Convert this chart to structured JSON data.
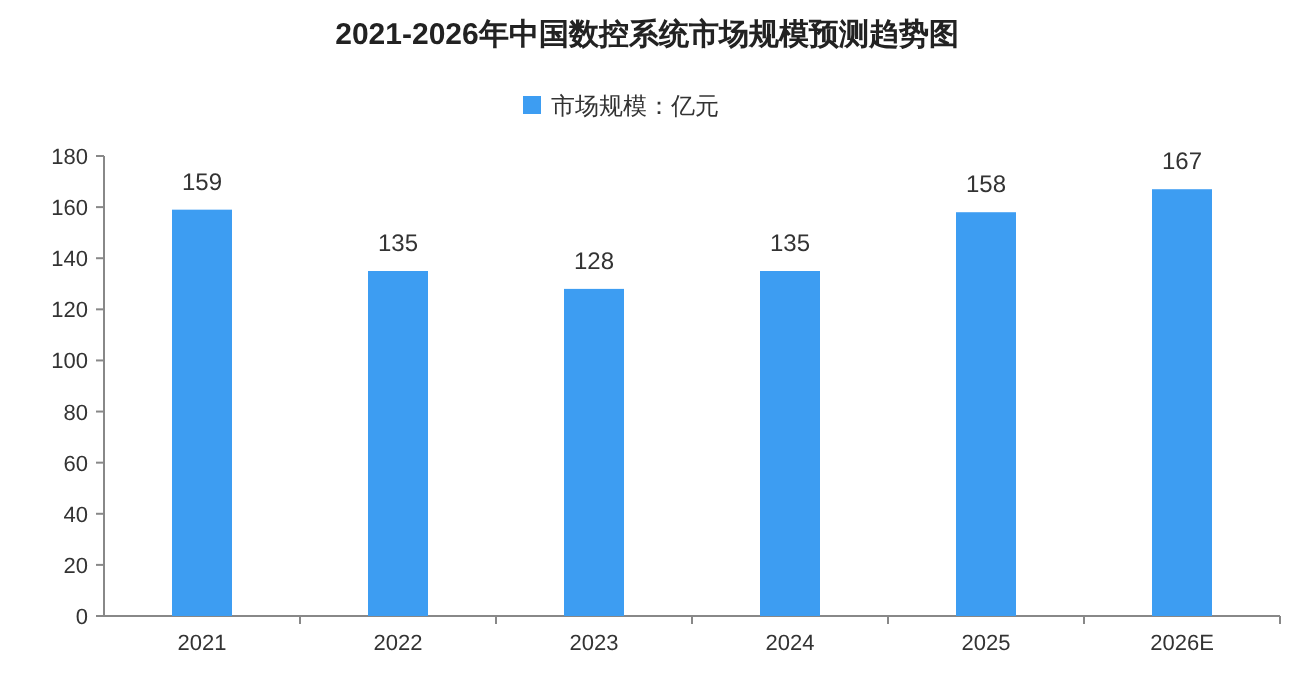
{
  "chart_data": {
    "type": "bar",
    "title": "2021-2026年中国数控系统市场规模预测趋势图",
    "categories": [
      "2021",
      "2022",
      "2023",
      "2024",
      "2025",
      "2026E"
    ],
    "series": [
      {
        "name": "市场规模：亿元",
        "color": "#3d9df2",
        "values": [
          159,
          135,
          128,
          135,
          158,
          167
        ]
      }
    ],
    "ylim": [
      0,
      180
    ],
    "yticks": [
      0,
      20,
      40,
      60,
      80,
      100,
      120,
      140,
      160,
      180
    ],
    "data_labels": true,
    "legend": "top",
    "grid": false
  }
}
